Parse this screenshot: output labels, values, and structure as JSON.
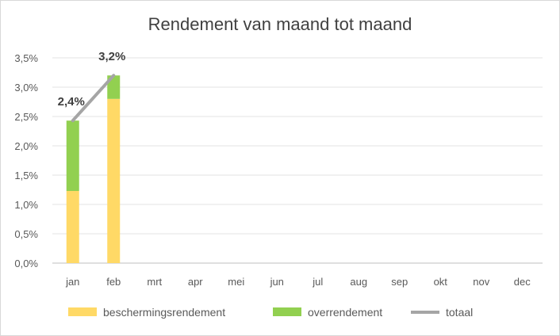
{
  "chart_data": {
    "type": "bar",
    "title": "Rendement van maand tot maand",
    "xlabel": "",
    "ylabel": "",
    "categories": [
      "jan",
      "feb",
      "mrt",
      "apr",
      "mei",
      "jun",
      "jul",
      "aug",
      "sep",
      "okt",
      "nov",
      "dec"
    ],
    "stacked": true,
    "series": [
      {
        "name": "beschermingsrendement",
        "type": "bar",
        "color": "#FFD966",
        "values": [
          1.23,
          2.8,
          null,
          null,
          null,
          null,
          null,
          null,
          null,
          null,
          null,
          null
        ]
      },
      {
        "name": "overrendement",
        "type": "bar",
        "color": "#92D050",
        "values": [
          1.2,
          0.4,
          null,
          null,
          null,
          null,
          null,
          null,
          null,
          null,
          null,
          null
        ]
      },
      {
        "name": "totaal",
        "type": "line",
        "color": "#A5A5A5",
        "values": [
          2.43,
          3.2,
          null,
          null,
          null,
          null,
          null,
          null,
          null,
          null,
          null,
          null
        ]
      }
    ],
    "data_labels": [
      "2,4%",
      "3,2%"
    ],
    "ylim": [
      0,
      3.5
    ],
    "yticks": [
      "0,0%",
      "0,5%",
      "1,0%",
      "1,5%",
      "2,0%",
      "2,5%",
      "3,0%",
      "3,5%"
    ],
    "grid": true,
    "legend": "bottom"
  }
}
